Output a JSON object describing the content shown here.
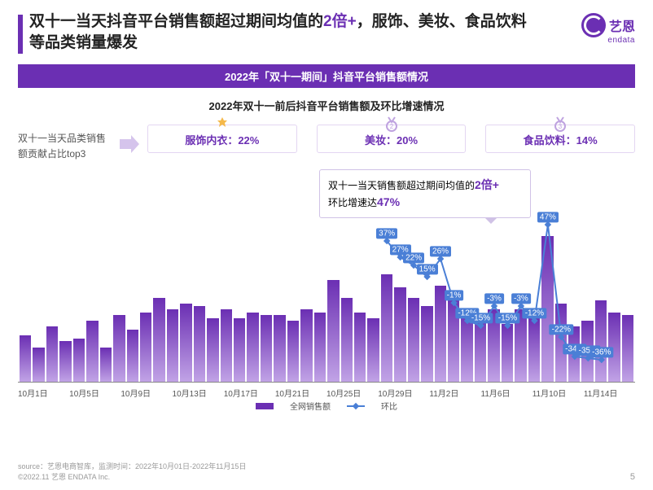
{
  "headline": {
    "pre": "双十一当天抖音平台销售额超过期间均值的",
    "em": "2倍+",
    "post": "，服饰、美妆、食品饮料等品类销量爆发"
  },
  "logo": {
    "cn": "艺恩",
    "en": "endata"
  },
  "banner": "2022年「双十一期间」抖音平台销售额情况",
  "subtitle": "2022年双十一前后抖音平台销售额及环比增速情况",
  "top3": {
    "label": "双十一当天品类销售额贡献占比top3",
    "items": [
      {
        "name": "服饰内衣",
        "pct": "22%",
        "color": "#6b2fb3"
      },
      {
        "name": "美妆",
        "pct": "20%",
        "color": "#6b2fb3"
      },
      {
        "name": "食品饮料",
        "pct": "14%",
        "color": "#6b2fb3"
      }
    ]
  },
  "callout": {
    "line1_pre": "双十一当天销售额超过期间均值的",
    "line1_em": "2倍+",
    "line2_pre": "环比增速达",
    "line2_em": "47%"
  },
  "chart": {
    "type": "bar+line",
    "background_color": "#ffffff",
    "bar_gradient_top": "#6b2fb3",
    "bar_gradient_bottom": "#c1a3e6",
    "line_color": "#4a7fd6",
    "bar_heights_pct": [
      32,
      24,
      38,
      28,
      30,
      42,
      24,
      46,
      36,
      48,
      58,
      50,
      54,
      52,
      44,
      50,
      44,
      48,
      46,
      46,
      42,
      50,
      48,
      70,
      58,
      48,
      44,
      74,
      65,
      58,
      52,
      66,
      58,
      48,
      46,
      50,
      40,
      50,
      44,
      100,
      54,
      38,
      42,
      56,
      48,
      46
    ],
    "line_points": [
      {
        "idx": 27,
        "val": 37,
        "label": "37%"
      },
      {
        "idx": 28,
        "val": 27,
        "label": "27%"
      },
      {
        "idx": 29,
        "val": 22,
        "label": "22%"
      },
      {
        "idx": 30,
        "val": 15,
        "label": "15%"
      },
      {
        "idx": 31,
        "val": 26,
        "label": "26%"
      },
      {
        "idx": 32,
        "val": -1,
        "label": "-1%"
      },
      {
        "idx": 33,
        "val": -12,
        "label": "-12%"
      },
      {
        "idx": 34,
        "val": -15,
        "label": "-15%"
      },
      {
        "idx": 35,
        "val": -3,
        "label": "-3%"
      },
      {
        "idx": 36,
        "val": -15,
        "label": "-15%"
      },
      {
        "idx": 37,
        "val": -3,
        "label": "-3%"
      },
      {
        "idx": 38,
        "val": -12,
        "label": "-12%"
      },
      {
        "idx": 39,
        "val": 47,
        "label": "47%"
      },
      {
        "idx": 40,
        "val": -22,
        "label": "-22%"
      },
      {
        "idx": 41,
        "val": -34,
        "label": "-34%"
      },
      {
        "idx": 42,
        "val": -35,
        "label": "-35%"
      },
      {
        "idx": 43,
        "val": -36,
        "label": "-36%"
      }
    ],
    "line_yrange": [
      -40,
      50
    ],
    "x_tick_labels": [
      "10月1日",
      "10月5日",
      "10月9日",
      "10月13日",
      "10月17日",
      "10月21日",
      "10月25日",
      "10月29日",
      "11月2日",
      "11月6日",
      "11月10日",
      "11月14日"
    ],
    "legend": {
      "bars": "全网销售额",
      "line": "环比"
    }
  },
  "footer": {
    "source": "source：艺恩电商智库，监测时间：2022年10月01日-2022年11月15日",
    "copyright": "©2022.11 艺恩 ENDATA Inc.",
    "page": "5"
  }
}
